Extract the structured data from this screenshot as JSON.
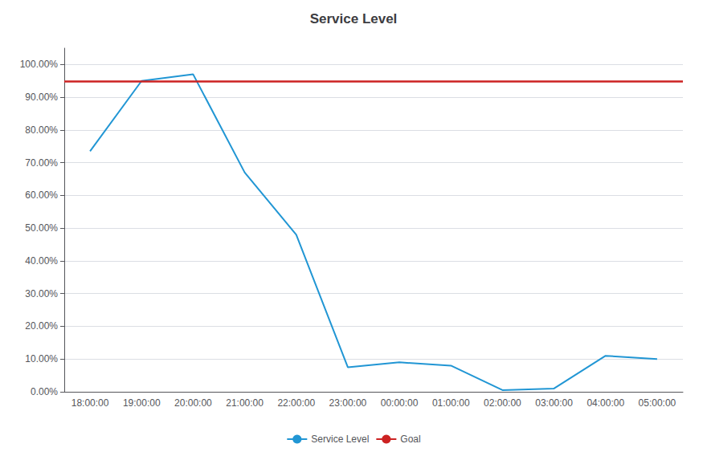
{
  "chart_data": {
    "type": "line",
    "title": "Service Level",
    "categories": [
      "18:00:00",
      "19:00:00",
      "20:00:00",
      "21:00:00",
      "22:00:00",
      "23:00:00",
      "00:00:00",
      "01:00:00",
      "02:00:00",
      "03:00:00",
      "04:00:00",
      "05:00:00"
    ],
    "series": [
      {
        "name": "Service Level",
        "type": "line",
        "color": "#2196d4",
        "values": [
          0.735,
          0.95,
          0.97,
          0.67,
          0.48,
          0.075,
          0.09,
          0.08,
          0.005,
          0.01,
          0.11,
          0.1
        ]
      },
      {
        "name": "Goal",
        "type": "hline",
        "color": "#cc2222",
        "value": 0.95
      }
    ],
    "ylim": [
      0.0,
      1.05
    ],
    "yticks": [
      {
        "value": 0.0,
        "label": "0.00%"
      },
      {
        "value": 0.1,
        "label": "10.00%"
      },
      {
        "value": 0.2,
        "label": "20.00%"
      },
      {
        "value": 0.3,
        "label": "30.00%"
      },
      {
        "value": 0.4,
        "label": "40.00%"
      },
      {
        "value": 0.5,
        "label": "50.00%"
      },
      {
        "value": 0.6,
        "label": "60.00%"
      },
      {
        "value": 0.7,
        "label": "70.00%"
      },
      {
        "value": 0.8,
        "label": "80.00%"
      },
      {
        "value": 0.9,
        "label": "90.00%"
      },
      {
        "value": 1.0,
        "label": "100.00%"
      }
    ],
    "grid": true,
    "legend": "bottom"
  }
}
